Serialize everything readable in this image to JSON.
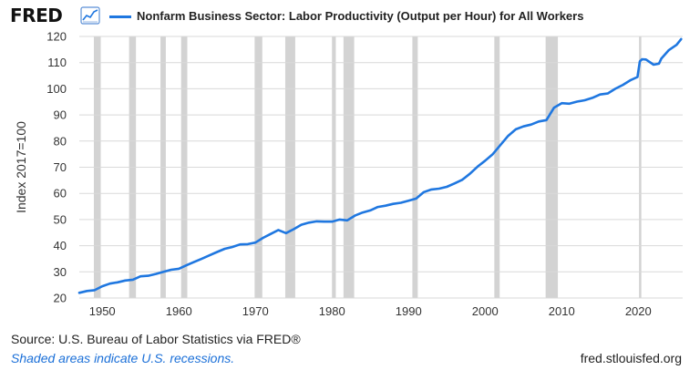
{
  "header": {
    "logo_text": "FRED",
    "series_title": "Nonfarm Business Sector: Labor Productivity (Output per Hour) for All Workers"
  },
  "footer": {
    "source": "Source: U.S. Bureau of Labor Statistics via FRED®",
    "note": "Shaded areas indicate U.S. recessions.",
    "url": "fred.stlouisfed.org"
  },
  "colors": {
    "series": "#1f77e0",
    "recession": "#d3d3d3",
    "grid": "#d9d9d9"
  },
  "chart_data": {
    "type": "line",
    "ylabel": "Index 2017=100",
    "ylim": [
      20,
      120
    ],
    "y_ticks": [
      20,
      30,
      40,
      50,
      60,
      70,
      80,
      90,
      100,
      110,
      120
    ],
    "xlim": [
      1947,
      2025.8
    ],
    "x_ticks": [
      1950,
      1960,
      1970,
      1980,
      1990,
      2000,
      2010,
      2020
    ],
    "legend_position": "top",
    "grid": true,
    "recessions": [
      [
        1948.9,
        1949.8
      ],
      [
        1953.5,
        1954.4
      ],
      [
        1957.6,
        1958.3
      ],
      [
        1960.3,
        1961.1
      ],
      [
        1969.9,
        1970.9
      ],
      [
        1973.9,
        1975.2
      ],
      [
        1980.0,
        1980.5
      ],
      [
        1981.5,
        1982.9
      ],
      [
        1990.5,
        1991.2
      ],
      [
        2001.2,
        2001.9
      ],
      [
        2007.9,
        2009.5
      ],
      [
        2020.1,
        2020.4
      ]
    ],
    "series": [
      {
        "name": "Nonfarm Business Sector: Labor Productivity (Output per Hour) for All Workers",
        "x": [
          1947,
          1948,
          1949,
          1950,
          1951,
          1952,
          1953,
          1954,
          1955,
          1956,
          1957,
          1958,
          1959,
          1960,
          1961,
          1962,
          1963,
          1964,
          1965,
          1966,
          1967,
          1968,
          1969,
          1970,
          1971,
          1972,
          1973,
          1974,
          1975,
          1976,
          1977,
          1978,
          1979,
          1980,
          1981,
          1982,
          1983,
          1984,
          1985,
          1986,
          1987,
          1988,
          1989,
          1990,
          1991,
          1992,
          1993,
          1994,
          1995,
          1996,
          1997,
          1998,
          1999,
          2000,
          2001,
          2002,
          2003,
          2004,
          2005,
          2006,
          2007,
          2008,
          2009,
          2010,
          2011,
          2012,
          2013,
          2014,
          2015,
          2016,
          2017,
          2018,
          2019,
          2019.9,
          2020.2,
          2020.5,
          2021,
          2022,
          2022.7,
          2023,
          2024,
          2025,
          2025.6
        ],
        "values": [
          22,
          22.7,
          23,
          24.5,
          25.5,
          26,
          26.7,
          27,
          28.3,
          28.5,
          29.2,
          30,
          30.8,
          31.2,
          32.5,
          33.8,
          35,
          36.3,
          37.6,
          38.8,
          39.5,
          40.5,
          40.6,
          41.2,
          43,
          44.5,
          46,
          44.8,
          46.3,
          48,
          48.8,
          49.3,
          49.2,
          49.2,
          50,
          49.7,
          51.5,
          52.7,
          53.5,
          54.8,
          55.3,
          56,
          56.4,
          57.2,
          58,
          60.5,
          61.5,
          61.8,
          62.5,
          63.8,
          65.2,
          67.5,
          70.2,
          72.5,
          75,
          78.5,
          82,
          84.5,
          85.6,
          86.3,
          87.5,
          88,
          92.8,
          94.5,
          94.3,
          95.1,
          95.6,
          96.5,
          97.8,
          98.2,
          100,
          101.5,
          103.3,
          104.5,
          110.5,
          111.3,
          111.2,
          109.2,
          109.6,
          111.5,
          114.8,
          116.8,
          119
        ]
      }
    ]
  }
}
